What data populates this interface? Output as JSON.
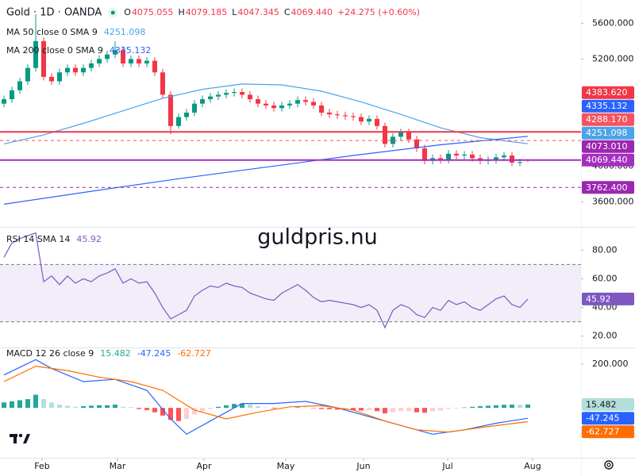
{
  "watermark": "guldpris.nu",
  "chart_data": [
    {
      "type": "candlestick",
      "title": "Gold · 1D · OANDA",
      "ohlc_keys": [
        "O",
        "H",
        "L",
        "C"
      ],
      "change_label": "+24.275 (+0.60%)",
      "up_color": "#089981",
      "down_color": "#f23645",
      "open": [
        4700,
        4750,
        4850,
        4950,
        5100,
        5400,
        5000,
        4950,
        5050,
        5100,
        5050,
        5100,
        5150,
        5200,
        5250,
        5300,
        5150,
        5200,
        5150,
        5180,
        5050,
        4800,
        4450,
        4550,
        4600,
        4700,
        4750,
        4780,
        4800,
        4820,
        4830,
        4800,
        4750,
        4700,
        4680,
        4650,
        4680,
        4700,
        4740,
        4720,
        4680,
        4600,
        4580,
        4570,
        4560,
        4550,
        4500,
        4530,
        4450,
        4250,
        4330,
        4380,
        4300,
        4200,
        4060,
        4090,
        4070,
        4140,
        4120,
        4130,
        4090,
        4060,
        4070,
        4100,
        4120,
        4040,
        4075.055
      ],
      "high": [
        4790,
        4890,
        4990,
        5140,
        5700,
        5440,
        5040,
        5090,
        5140,
        5140,
        5140,
        5190,
        5240,
        5290,
        5400,
        5340,
        5240,
        5240,
        5220,
        5220,
        5090,
        4840,
        4590,
        4640,
        4740,
        4790,
        4820,
        4840,
        4860,
        4870,
        4870,
        4840,
        4790,
        4740,
        4720,
        4720,
        4740,
        4780,
        4780,
        4760,
        4720,
        4640,
        4620,
        4610,
        4600,
        4590,
        4570,
        4570,
        4490,
        4370,
        4420,
        4420,
        4340,
        4240,
        4130,
        4130,
        4180,
        4180,
        4170,
        4170,
        4130,
        4110,
        4140,
        4160,
        4160,
        4085,
        4079.185
      ],
      "low": [
        4660,
        4710,
        4810,
        4910,
        5060,
        4960,
        4910,
        4910,
        5010,
        5010,
        5010,
        5060,
        5110,
        5160,
        5210,
        5110,
        5110,
        5110,
        5110,
        5010,
        4760,
        4360,
        4420,
        4510,
        4560,
        4660,
        4710,
        4740,
        4760,
        4780,
        4760,
        4710,
        4660,
        4640,
        4610,
        4610,
        4640,
        4660,
        4680,
        4640,
        4560,
        4540,
        4530,
        4520,
        4510,
        4460,
        4460,
        4410,
        4210,
        4210,
        4290,
        4260,
        4160,
        4020,
        4020,
        4030,
        4030,
        4080,
        4080,
        4050,
        4020,
        4020,
        4030,
        4060,
        4000,
        4000,
        4047.345
      ],
      "close": [
        4750,
        4850,
        4950,
        5100,
        5400,
        5000,
        4950,
        5050,
        5100,
        5050,
        5100,
        5150,
        5200,
        5250,
        5300,
        5150,
        5200,
        5150,
        5180,
        5050,
        4800,
        4450,
        4550,
        4600,
        4700,
        4750,
        4780,
        4800,
        4820,
        4830,
        4800,
        4750,
        4700,
        4680,
        4650,
        4680,
        4700,
        4740,
        4720,
        4680,
        4600,
        4580,
        4570,
        4560,
        4550,
        4500,
        4530,
        4450,
        4250,
        4330,
        4380,
        4300,
        4200,
        4060,
        4090,
        4070,
        4140,
        4120,
        4130,
        4090,
        4060,
        4070,
        4100,
        4120,
        4040,
        4045.165,
        4069.44
      ],
      "series": [
        {
          "name": "MA 50 close 0 SMA 9",
          "color": "#4ba3e8",
          "x": [
            0,
            5,
            10,
            15,
            20,
            25,
            30,
            35,
            40,
            45,
            50,
            55,
            60,
            66
          ],
          "values": [
            4250,
            4350,
            4480,
            4620,
            4760,
            4860,
            4920,
            4910,
            4840,
            4720,
            4580,
            4430,
            4320,
            4251.098
          ]
        },
        {
          "name": "MA 200 close 0 SMA 9",
          "color": "#2962ff",
          "x": [
            0,
            11,
            22,
            33,
            44,
            55,
            66
          ],
          "values": [
            3575,
            3720,
            3860,
            3990,
            4120,
            4240,
            4335.132
          ]
        }
      ],
      "price_labels": [
        {
          "value": 4383.62,
          "label": "4383.620",
          "color": "#f23645",
          "line": "solid"
        },
        {
          "value": 4288.17,
          "label": "4288.170",
          "color": "#f7525f",
          "line": "dashed"
        },
        {
          "value": 4073.01,
          "label": "4073.010",
          "color": "#9c27b0"
        },
        {
          "value": 4069.44,
          "label": "4069.440",
          "color": "#a52fbf",
          "line": "solid"
        },
        {
          "value": 3762.4,
          "label": "3762.400",
          "color": "#9c27b0",
          "line": "dashed"
        }
      ],
      "ylim": [
        3330,
        5860
      ],
      "yticks": [
        {
          "value": 5600,
          "label": "5600.000"
        },
        {
          "value": 5200,
          "label": "5200.000"
        },
        {
          "value": 4000,
          "label": "4000.000"
        },
        {
          "value": 3600,
          "label": "3600.000"
        }
      ],
      "xlim": [
        -0.5,
        72.7
      ],
      "xticks": [
        {
          "value": 4.8,
          "label": "Feb"
        },
        {
          "value": 14.3,
          "label": "Mar"
        },
        {
          "value": 25.2,
          "label": "Apr"
        },
        {
          "value": 35.5,
          "label": "May"
        },
        {
          "value": 45.3,
          "label": "Jun"
        },
        {
          "value": 55.9,
          "label": "Jul"
        },
        {
          "value": 66.6,
          "label": "Aug"
        }
      ]
    },
    {
      "type": "line",
      "title": "RSI 14 SMA 14",
      "series": [
        {
          "color": "#7e57c2",
          "values": [
            75,
            85,
            88,
            90,
            92,
            58,
            62,
            56,
            62,
            57,
            60,
            58,
            62,
            64,
            67,
            57,
            60,
            57,
            58,
            50,
            40,
            32,
            35,
            38,
            48,
            52,
            55,
            54,
            57,
            55,
            54,
            50,
            48,
            46,
            45,
            50,
            53,
            56,
            52,
            47,
            44,
            45,
            44,
            43,
            42,
            40,
            42,
            38,
            26,
            38,
            42,
            40,
            35,
            33,
            40,
            38,
            45,
            42,
            44,
            40,
            38,
            42,
            46,
            48,
            42,
            40,
            45.92
          ]
        }
      ],
      "band": [
        30,
        70
      ],
      "ylim": [
        11,
        94
      ],
      "yticks": [
        {
          "value": 80,
          "label": "80.00"
        },
        {
          "value": 60,
          "label": "60.00"
        },
        {
          "value": 40,
          "label": "40.00"
        },
        {
          "value": 20,
          "label": "20.00"
        }
      ]
    },
    {
      "type": "macd",
      "title": "MACD 12 26 close 9",
      "histogram": {
        "values": [
          25,
          30,
          35,
          40,
          60,
          40,
          25,
          15,
          10,
          5,
          8,
          10,
          12,
          12,
          15,
          5,
          3,
          -5,
          -10,
          -20,
          -35,
          -55,
          -60,
          -50,
          -30,
          -15,
          -5,
          5,
          12,
          18,
          20,
          15,
          8,
          2,
          -3,
          -2,
          0,
          3,
          2,
          -2,
          -5,
          -6,
          -8,
          -8,
          -10,
          -12,
          -10,
          -15,
          -25,
          -20,
          -15,
          -15,
          -20,
          -22,
          -15,
          -12,
          -5,
          -3,
          2,
          5,
          8,
          10,
          12,
          14,
          15,
          14,
          15.482
        ],
        "colors": [
          "#26a69a",
          "#b2dfdb",
          "#ff5252",
          "#ffcdd2"
        ]
      },
      "series": [
        {
          "color": "#2962ff",
          "x": [
            0,
            4,
            6,
            10,
            14,
            18,
            21,
            23,
            26,
            30,
            34,
            38,
            42,
            46,
            50,
            54,
            58,
            62,
            66
          ],
          "values": [
            150,
            220,
            180,
            120,
            130,
            80,
            -50,
            -120,
            -60,
            20,
            20,
            30,
            0,
            -40,
            -80,
            -120,
            -100,
            -70,
            -47.245
          ]
        },
        {
          "color": "#ff6d00",
          "x": [
            0,
            4,
            8,
            12,
            16,
            20,
            24,
            28,
            32,
            36,
            40,
            44,
            48,
            52,
            56,
            60,
            66
          ],
          "values": [
            120,
            190,
            170,
            140,
            120,
            80,
            -10,
            -50,
            -20,
            5,
            10,
            -10,
            -60,
            -100,
            -110,
            -90,
            -62.727
          ]
        }
      ],
      "ylim": [
        -220,
        250
      ],
      "yticks": [
        {
          "value": 200,
          "label": "200.000"
        }
      ]
    }
  ]
}
